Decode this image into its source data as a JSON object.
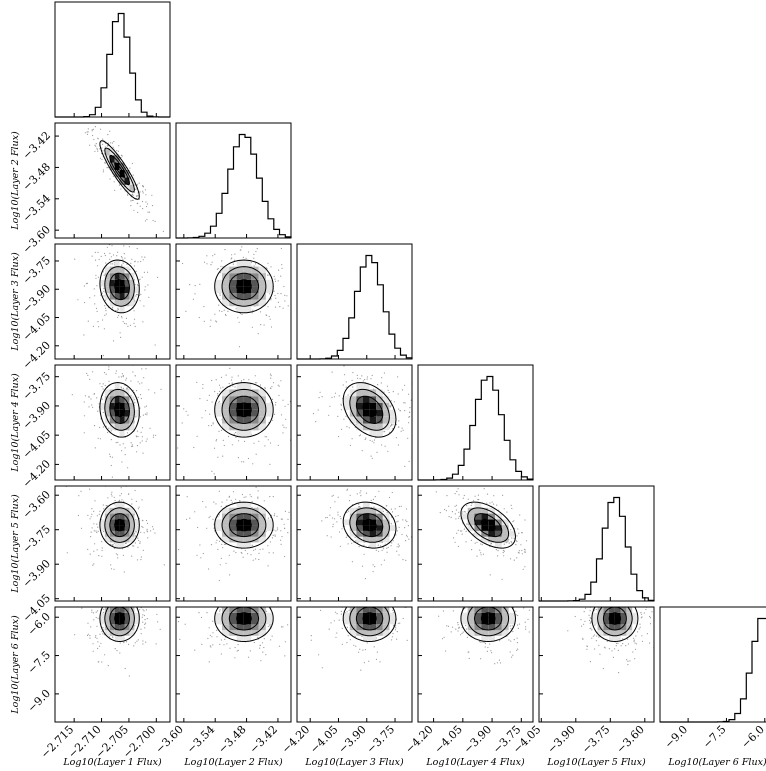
{
  "chart_data": {
    "type": "corner",
    "parameters": [
      {
        "label": "Log$_{10}$(Layer 1 Flux)",
        "display": "Log10(Layer 1 Flux)",
        "ticks": [
          "-2.715",
          "-2.710",
          "-2.705",
          "-2.700"
        ],
        "tick_values": [
          -2.715,
          -2.71,
          -2.705,
          -2.7
        ],
        "range": [
          -2.7185,
          -2.6975
        ],
        "mean": -2.7067,
        "sd": 0.0018
      },
      {
        "label": "Log$_{10}$(Layer 2 Flux)",
        "display": "Log10(Layer 2 Flux)",
        "ticks": [
          "-3.60",
          "-3.54",
          "-3.48",
          "-3.42"
        ],
        "tick_values": [
          -3.6,
          -3.54,
          -3.48,
          -3.42
        ],
        "range": [
          -3.615,
          -3.395
        ],
        "mean": -3.485,
        "sd": 0.028
      },
      {
        "label": "Log$_{10}$(Layer 3 Flux)",
        "display": "Log10(Layer 3 Flux)",
        "ticks": [
          "-4.20",
          "-4.05",
          "-3.90",
          "-3.75"
        ],
        "tick_values": [
          -4.2,
          -4.05,
          -3.9,
          -3.75
        ],
        "range": [
          -4.27,
          -3.66
        ],
        "mean": -3.885,
        "sd": 0.07
      },
      {
        "label": "Log$_{10}$(Layer 4 Flux)",
        "display": "Log10(Layer 4 Flux)",
        "ticks": [
          "-4.20",
          "-4.05",
          "-3.90",
          "-3.75"
        ],
        "tick_values": [
          -4.2,
          -4.05,
          -3.9,
          -3.75
        ],
        "range": [
          -4.28,
          -3.69
        ],
        "mean": -3.92,
        "sd": 0.07
      },
      {
        "label": "Log$_{10}$(Layer 5 Flux)",
        "display": "Log10(Layer 5 Flux)",
        "ticks": [
          "-4.05",
          "-3.90",
          "-3.75",
          "-3.60"
        ],
        "tick_values": [
          -4.05,
          -3.9,
          -3.75,
          -3.6
        ],
        "range": [
          -4.06,
          -3.56
        ],
        "mean": -3.73,
        "sd": 0.05
      },
      {
        "label": "Log$_{10}$(Layer 6 Flux)",
        "display": "Log10(Layer 6 Flux)",
        "ticks": [
          "-9.0",
          "-7.5",
          "-6.0"
        ],
        "tick_values": [
          -9.0,
          -7.5,
          -6.0
        ],
        "range": [
          -10.1,
          -5.6
        ],
        "mean": -6.05,
        "sd": 0.45
      }
    ],
    "correlations": [
      [
        1,
        -0.9,
        -0.1,
        -0.1,
        0.0,
        0.0
      ],
      [
        -0.9,
        1,
        0.0,
        0.0,
        0.0,
        0.0
      ],
      [
        -0.1,
        0.0,
        1,
        -0.35,
        -0.15,
        0.0
      ],
      [
        -0.1,
        0.0,
        -0.35,
        1,
        -0.5,
        0.0
      ],
      [
        0.0,
        0.0,
        -0.15,
        -0.5,
        1,
        0.0
      ],
      [
        0.0,
        0.0,
        0.0,
        0.0,
        0.0,
        1
      ]
    ],
    "contour_levels": [
      "0.5 sigma",
      "1 sigma",
      "1.5 sigma",
      "2 sigma"
    ],
    "colors": {
      "ink": "#000000",
      "point": "#9a9a9a",
      "density": [
        "#e6e6e6",
        "#bdbdbd",
        "#8a8a8a",
        "#555555",
        "#1a1a1a",
        "#000000"
      ]
    }
  }
}
